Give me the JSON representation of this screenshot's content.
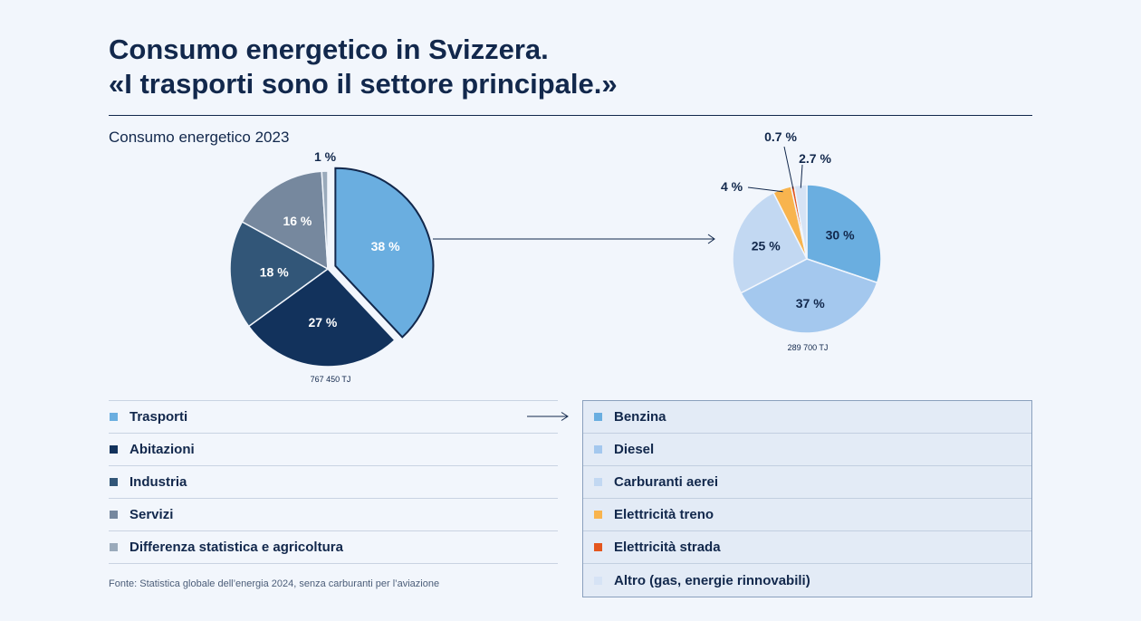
{
  "title": {
    "line1": "Consumo energetico in Svizzera.",
    "line2": "«I trasporti sono il settore principale.»"
  },
  "subtitle": "Consumo energetico 2023",
  "source": "Fonte: Statistica globale dell’energia 2024, senza carburanti per l’aviazione",
  "chart_data": [
    {
      "type": "pie",
      "title": "Consumo energetico 2023",
      "total_label": "767 450 TJ",
      "labels": [
        "Trasporti",
        "Abitazioni",
        "Industria",
        "Servizi",
        "Differenza statistica e agricoltura"
      ],
      "values": [
        38,
        27,
        18,
        16,
        1
      ],
      "value_labels": [
        "38 %",
        "27 %",
        "18 %",
        "16 %",
        "1 %"
      ],
      "colors": [
        "#6aaee0",
        "#12325c",
        "#325678",
        "#76889e",
        "#9aaabb"
      ],
      "exploded": "Trasporti"
    },
    {
      "type": "pie",
      "title": "Trasporti",
      "total_label": "289 700 TJ",
      "labels": [
        "Benzina",
        "Diesel",
        "Carburanti aerei",
        "Elettricità treno",
        "Elettricità strada",
        "Altro (gas, energie rinnovabili)"
      ],
      "values": [
        30,
        37,
        25,
        4,
        0.7,
        2.7
      ],
      "value_labels": [
        "30 %",
        "37 %",
        "25 %",
        "4 %",
        "0.7 %",
        "2.7 %"
      ],
      "colors": [
        "#6aaee0",
        "#a4c8ee",
        "#c2d8f2",
        "#f8b44e",
        "#e4561e",
        "#d6e3f5"
      ]
    }
  ],
  "legend_left": [
    {
      "label": "Trasporti",
      "color": "#6aaee0"
    },
    {
      "label": "Abitazioni",
      "color": "#12325c"
    },
    {
      "label": "Industria",
      "color": "#325678"
    },
    {
      "label": "Servizi",
      "color": "#76889e"
    },
    {
      "label": "Differenza statistica e agricoltura",
      "color": "#9aaabb"
    }
  ],
  "legend_right": [
    {
      "label": "Benzina",
      "color": "#6aaee0"
    },
    {
      "label": "Diesel",
      "color": "#a4c8ee"
    },
    {
      "label": "Carburanti aerei",
      "color": "#c2d8f2"
    },
    {
      "label": "Elettricità treno",
      "color": "#f8b44e"
    },
    {
      "label": "Elettricità strada",
      "color": "#e4561e"
    },
    {
      "label": "Altro (gas, energie rinnovabili)",
      "color": "#d6e3f5"
    }
  ],
  "colors": {
    "text": "#12284c",
    "background": "#f2f6fc",
    "panel": "#e3ebf6"
  }
}
